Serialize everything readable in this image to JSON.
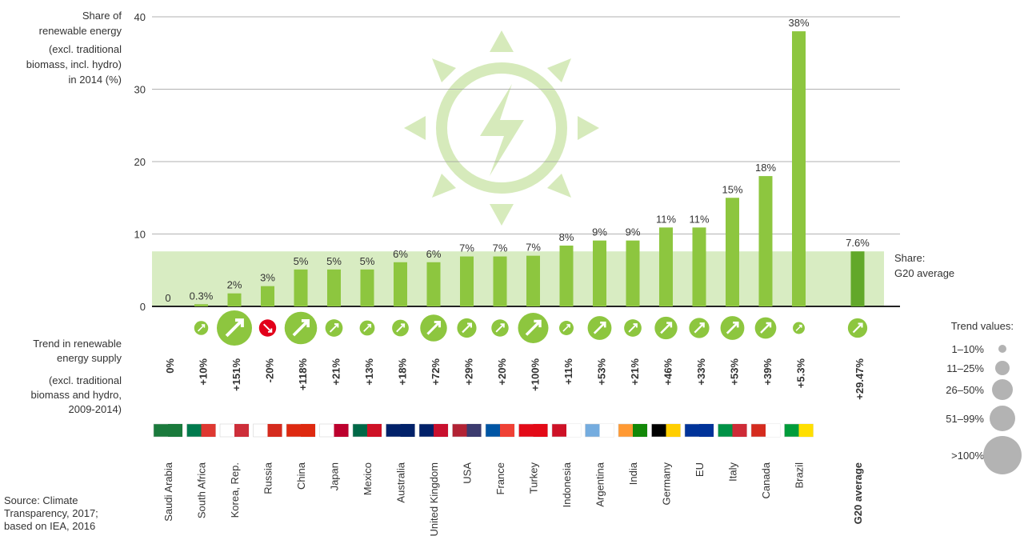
{
  "chart_data": {
    "type": "bar",
    "y_label_lines": [
      "Share of",
      "renewable energy",
      "(excl. traditional",
      "biomass, incl. hydro)",
      "in 2014 (%)"
    ],
    "categories": [
      "Saudi Arabia",
      "South Africa",
      "Korea, Rep.",
      "Russia",
      "China",
      "Japan",
      "Mexico",
      "Australia",
      "United Kingdom",
      "USA",
      "France",
      "Turkey",
      "Indonesia",
      "Argentina",
      "India",
      "Germany",
      "EU",
      "Italy",
      "Canada",
      "Brazil",
      "G20 average"
    ],
    "values": [
      0,
      0.3,
      1.8,
      2.8,
      5.1,
      5.1,
      5.1,
      6.1,
      6.1,
      6.9,
      6.9,
      7.0,
      8.4,
      9.1,
      9.1,
      10.9,
      10.9,
      15.0,
      18.0,
      38.0,
      7.6
    ],
    "value_labels": [
      "0",
      "0.3%",
      "2%",
      "3%",
      "5%",
      "5%",
      "5%",
      "6%",
      "6%",
      "7%",
      "7%",
      "7%",
      "8%",
      "9%",
      "9%",
      "11%",
      "11%",
      "15%",
      "18%",
      "38%",
      "7.6%"
    ],
    "color": "#8dc63f",
    "average_color": "#62a82a",
    "band_color": "#d8ecc2",
    "band_label_lines": [
      "Share:",
      "G20 average"
    ],
    "ylim": [
      0,
      40
    ],
    "yticks": [
      0,
      10,
      20,
      30,
      40
    ],
    "grid": true,
    "trend": {
      "title_lines": [
        "Trend in renewable",
        "energy supply"
      ],
      "note_lines": [
        "(excl. traditional",
        "biomass and hydro,",
        "2009-2014)"
      ],
      "values": [
        0,
        10,
        151,
        -20,
        118,
        21,
        13,
        18,
        72,
        29,
        20,
        100,
        11,
        53,
        21,
        46,
        33,
        53,
        39,
        5.3,
        29.47
      ],
      "value_labels": [
        "0%",
        "+10%",
        "+151%",
        "-20%",
        "+118%",
        "+21%",
        "+13%",
        "+18%",
        "+72%",
        "+29%",
        "+20%",
        "+100%",
        "+11%",
        "+53%",
        "+21%",
        "+46%",
        "+33%",
        "+53%",
        "+39%",
        "+5.3%",
        "+29.47%"
      ],
      "up_color": "#8dc63f",
      "down_color": "#e2001a",
      "legend_title": "Trend values:",
      "legend_labels": [
        "1–10%",
        "11–25%",
        "26–50%",
        "51–99%",
        ">100%"
      ]
    },
    "source_lines": [
      "Source: Climate",
      "Transparency, 2017;",
      "based on IEA, 2016"
    ]
  }
}
